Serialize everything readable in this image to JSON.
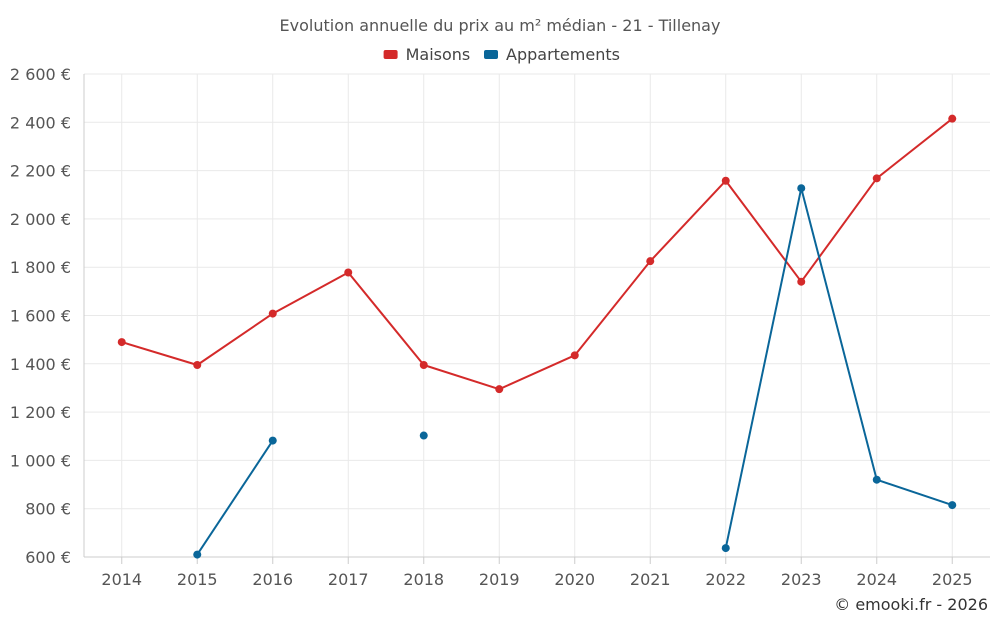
{
  "chart_data": {
    "type": "line",
    "title": "Evolution annuelle du prix au m² médian - 21 - Tillenay",
    "categories": [
      "2014",
      "2015",
      "2016",
      "2017",
      "2018",
      "2019",
      "2020",
      "2021",
      "2022",
      "2023",
      "2024",
      "2025"
    ],
    "series": [
      {
        "name": "Maisons",
        "color": "#d42a2a",
        "values": [
          1490,
          1395,
          1608,
          1778,
          1395,
          1295,
          1435,
          1825,
          2158,
          1740,
          2168,
          2415
        ]
      },
      {
        "name": "Appartements",
        "color": "#0a6699",
        "values": [
          null,
          610,
          1082,
          null,
          1103,
          null,
          null,
          null,
          637,
          2127,
          920,
          815
        ]
      }
    ],
    "y_ticks": [
      "600 €",
      "800 €",
      "1 000 €",
      "1 200 €",
      "1 400 €",
      "1 600 €",
      "1 800 €",
      "2 000 €",
      "2 200 €",
      "2 400 €",
      "2 600 €"
    ],
    "ylim": [
      600,
      2600
    ],
    "y_step": 200,
    "xlabel": "",
    "ylabel": "",
    "grid": true,
    "legend_position": "top-center",
    "credit": "© emooki.fr - 2026"
  }
}
